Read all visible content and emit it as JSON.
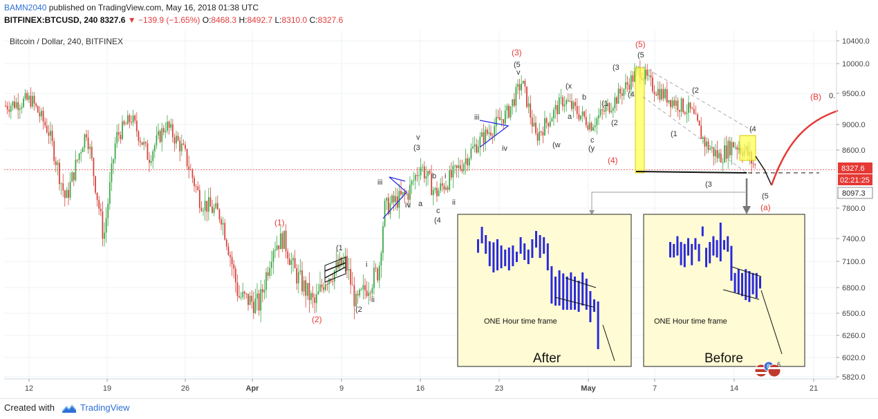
{
  "header": {
    "author": "BAMN2040",
    "published_text": "published on TradingView.com, May 16, 2018 01:38 UTC",
    "symbol": "BITFINEX:BTCUSD, 240",
    "last": "8327.6",
    "change": "−139.9 (−1.65%)",
    "o_label": "O:",
    "o_value": "8468.3",
    "h_label": "H:",
    "h_value": "8492.7",
    "l_label": "L:",
    "l_value": "8310.0",
    "c_label": "C:",
    "c_value": "8327.6"
  },
  "footer": {
    "created_with": "Created with",
    "brand": "TradingView"
  },
  "colors": {
    "up": "#3aa845",
    "down": "#d6423a",
    "accent": "#2f6fd6",
    "red": "#e53935",
    "highlight": "#ffff55",
    "inset_bg": "#fffbd4",
    "blue_bars": "#2a2adc"
  },
  "chart_data": {
    "type": "candlestick",
    "title": "Bitcoin / Dollar, 240, BITFINEX",
    "xlabel": "",
    "ylabel": "",
    "ylim": [
      5760,
      10560
    ],
    "y_ticks": [
      "10400.0",
      "10000.0",
      "9500.0",
      "9000.0",
      "8600.0",
      "8327.6",
      "8097.3",
      "7800.0",
      "7400.0",
      "7100.0",
      "6800.0",
      "6500.0",
      "6260.0",
      "6020.0",
      "5820.0"
    ],
    "x_ticks": [
      "12",
      "19",
      "26",
      "Apr",
      "9",
      "16",
      "23",
      "May",
      "7",
      "14",
      "21"
    ],
    "last_price": 8327.6,
    "last_price_label": "8327.6",
    "countdown": "02:21:25",
    "level_label": "8097.3",
    "partial_label": "0.",
    "wave_labels_red": [
      "(1)",
      "(2)",
      "(3)",
      "(4)",
      "(5)",
      "(B)",
      "(a)"
    ],
    "wave_labels_black": [
      "(1",
      "(2",
      "(3",
      "(4",
      "(5",
      "(x",
      "(w",
      "(y",
      "a",
      "b",
      "c",
      "i",
      "ii",
      "iii",
      "iv",
      "v"
    ],
    "insets": [
      {
        "caption": "ONE Hour time frame",
        "title": "After"
      },
      {
        "caption": "ONE Hour time frame",
        "title": "Before"
      }
    ],
    "badge_numbers": [
      "8",
      "6"
    ]
  }
}
